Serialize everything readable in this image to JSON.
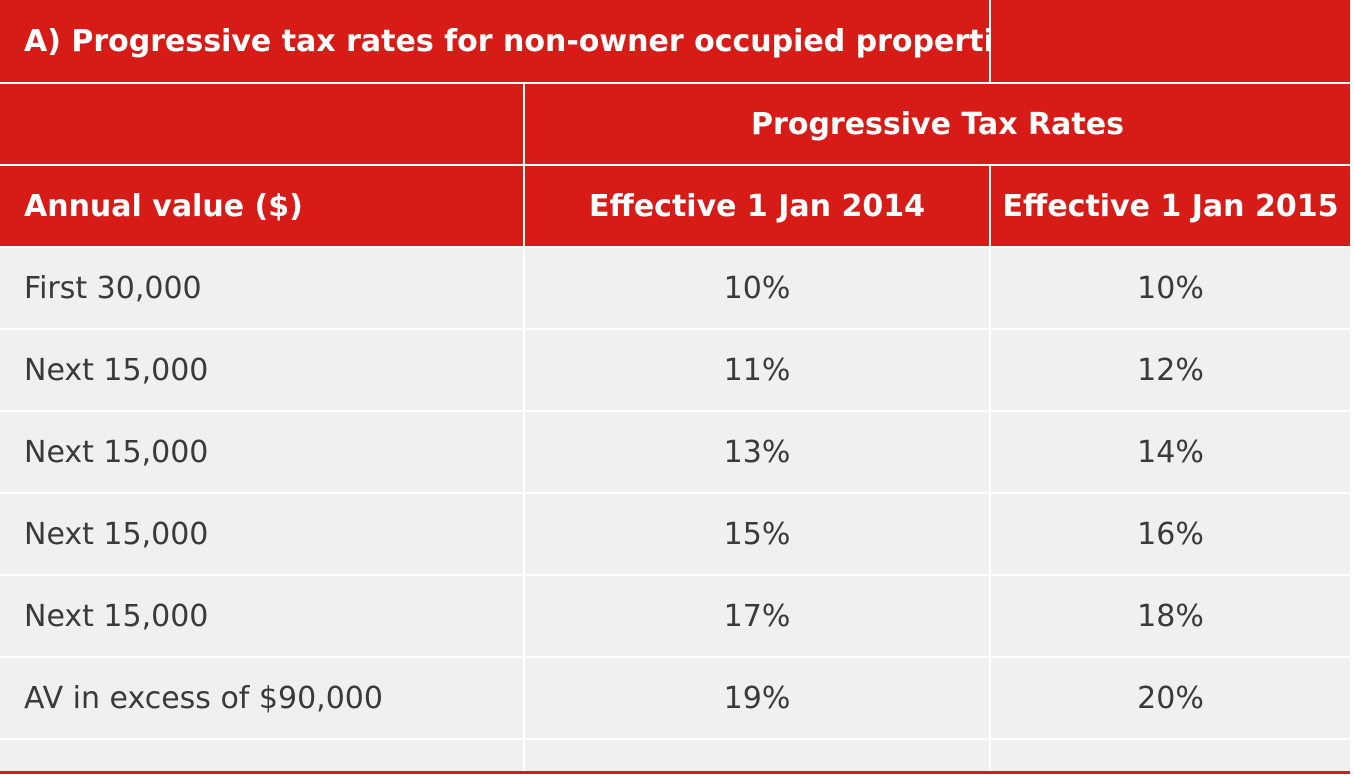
{
  "table": {
    "title": "A) Progressive tax rates for non-owner occupied properties",
    "group_header": "Progressive Tax Rates",
    "columns": [
      "Annual value ($)",
      "Effective 1 Jan 2014",
      "Effective 1 Jan 2015"
    ],
    "rows": [
      [
        "First 30,000",
        "10%",
        "10%"
      ],
      [
        "Next 15,000",
        "11%",
        "12%"
      ],
      [
        "Next 15,000",
        "13%",
        "14%"
      ],
      [
        "Next 15,000",
        "15%",
        "16%"
      ],
      [
        "Next 15,000",
        "17%",
        "18%"
      ],
      [
        "AV in excess of $90,000",
        "19%",
        "20%"
      ]
    ]
  },
  "colors": {
    "header_bg": "#d71c18",
    "header_text": "#ffffff",
    "body_bg": "#f0f0f0",
    "body_text": "#3a3a3a",
    "grid": "#ffffff"
  }
}
